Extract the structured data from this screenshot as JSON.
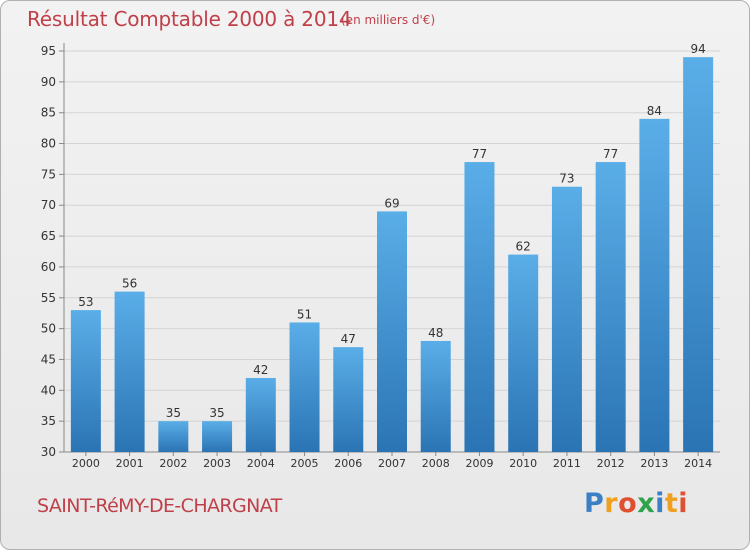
{
  "header": {
    "title": "Résultat Comptable 2000 à 2014",
    "subtitle": "(en milliers d'€)"
  },
  "footer": {
    "commune": "SAINT-RéMY-DE-CHARGNAT",
    "logo": [
      "P",
      "r",
      "o",
      "x",
      "i",
      "t",
      "i"
    ]
  },
  "colors": {
    "bar_light": "#5aaee8",
    "bar_dark": "#2b74b4",
    "title": "#c0404a",
    "grid": "#d4d4d4"
  },
  "chart_data": {
    "type": "bar",
    "title": "Résultat Comptable 2000 à 2014",
    "categories": [
      "2000",
      "2001",
      "2002",
      "2003",
      "2004",
      "2005",
      "2006",
      "2007",
      "2008",
      "2009",
      "2010",
      "2011",
      "2012",
      "2013",
      "2014"
    ],
    "values": [
      53,
      56,
      35,
      35,
      42,
      51,
      47,
      69,
      48,
      77,
      62,
      73,
      77,
      84,
      94
    ],
    "yticks": [
      30,
      35,
      40,
      45,
      50,
      55,
      60,
      65,
      70,
      75,
      80,
      85,
      90,
      95
    ],
    "ylim": [
      30,
      95
    ],
    "grid": true
  }
}
